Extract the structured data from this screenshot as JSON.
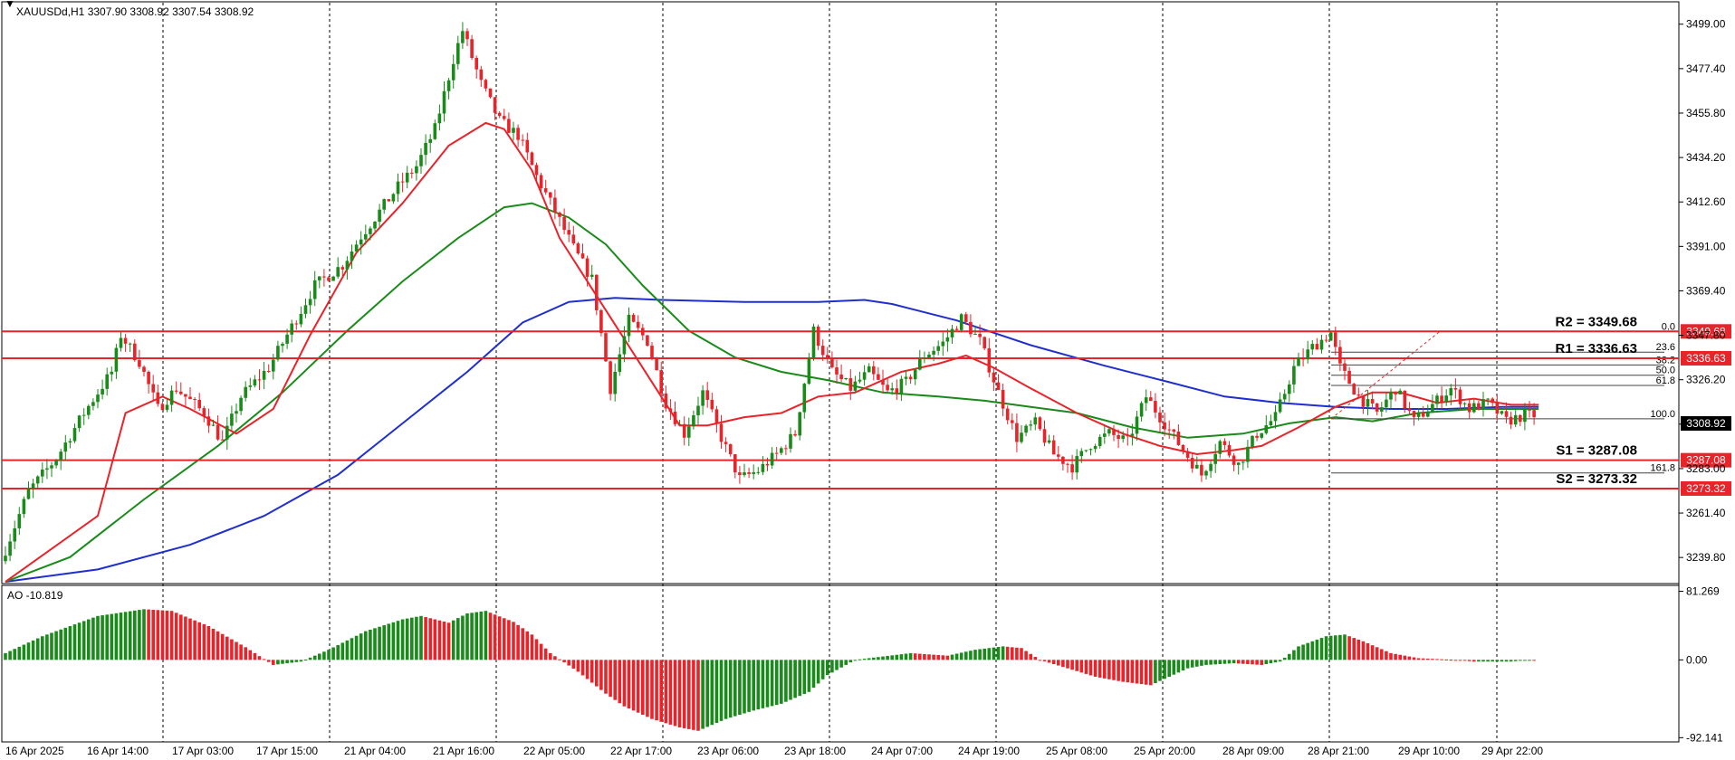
{
  "header": {
    "symbol_line": "XAUUSDd,H1  3307.90 3308.92 3307.54 3308.92"
  },
  "indicator": {
    "label": "AO -10.819"
  },
  "colors": {
    "bull": "#1a8a1a",
    "bear": "#e8232a",
    "ma_fast": "#e8232a",
    "ma_mid": "#1a8a1a",
    "ma_slow": "#1f2fcf",
    "level": "#e8232a",
    "current_bg": "#000000"
  },
  "levels": [
    {
      "name": "R2 = 3349.68",
      "value": 3349.68,
      "tag": "3349.68"
    },
    {
      "name": "R1 = 3336.63",
      "value": 3336.63,
      "tag": "3336.63"
    },
    {
      "name": "S1 = 3287.08",
      "value": 3287.08,
      "tag": "3287.08"
    },
    {
      "name": "S2 = 3273.32",
      "value": 3273.32,
      "tag": "3273.32"
    }
  ],
  "current_price": "3308.92",
  "fibonacci": {
    "levels": [
      {
        "label": "0.0",
        "value": 3349.68
      },
      {
        "label": "23.6",
        "value": 3339.6
      },
      {
        "label": "38.2",
        "value": 3333.4
      },
      {
        "label": "50.0",
        "value": 3328.4
      },
      {
        "label": "61.8",
        "value": 3323.4
      },
      {
        "label": "100.0",
        "value": 3307.2
      },
      {
        "label": "161.8",
        "value": 3280.9
      }
    ]
  },
  "chart_data": {
    "type": "candlestick",
    "price_axis": {
      "min": 3228,
      "max": 3509,
      "ticks": [
        "3499.00",
        "3477.40",
        "3455.80",
        "3434.20",
        "3412.60",
        "3391.00",
        "3369.40",
        "3347.80",
        "3326.20",
        "3304.60",
        "3283.00",
        "3261.40",
        "3239.80"
      ]
    },
    "ao_axis": {
      "min": -95,
      "max": 85,
      "ticks": [
        "81.269",
        "0.00",
        "-92.141"
      ]
    },
    "time_labels": [
      "16 Apr 2025",
      "16 Apr 14:00",
      "17 Apr 03:00",
      "17 Apr 15:00",
      "21 Apr 04:00",
      "21 Apr 16:00",
      "22 Apr 05:00",
      "22 Apr 17:00",
      "23 Apr 06:00",
      "23 Apr 18:00",
      "24 Apr 07:00",
      "24 Apr 19:00",
      "25 Apr 08:00",
      "25 Apr 20:00",
      "28 Apr 09:00",
      "28 Apr 21:00",
      "29 Apr 10:00",
      "29 Apr 22:00"
    ],
    "close_path": [
      [
        0,
        3238
      ],
      [
        6,
        3272
      ],
      [
        12,
        3288
      ],
      [
        18,
        3310
      ],
      [
        24,
        3330
      ],
      [
        26,
        3348
      ],
      [
        30,
        3335
      ],
      [
        34,
        3312
      ],
      [
        38,
        3322
      ],
      [
        44,
        3310
      ],
      [
        48,
        3296
      ],
      [
        52,
        3318
      ],
      [
        58,
        3332
      ],
      [
        62,
        3348
      ],
      [
        68,
        3372
      ],
      [
        74,
        3382
      ],
      [
        78,
        3396
      ],
      [
        82,
        3408
      ],
      [
        86,
        3420
      ],
      [
        90,
        3430
      ],
      [
        94,
        3448
      ],
      [
        98,
        3482
      ],
      [
        100,
        3496
      ],
      [
        104,
        3470
      ],
      [
        108,
        3452
      ],
      [
        112,
        3445
      ],
      [
        116,
        3425
      ],
      [
        120,
        3408
      ],
      [
        124,
        3390
      ],
      [
        128,
        3375
      ],
      [
        132,
        3322
      ],
      [
        136,
        3355
      ],
      [
        140,
        3345
      ],
      [
        144,
        3315
      ],
      [
        148,
        3300
      ],
      [
        152,
        3320
      ],
      [
        156,
        3298
      ],
      [
        160,
        3278
      ],
      [
        164,
        3282
      ],
      [
        168,
        3290
      ],
      [
        172,
        3300
      ],
      [
        176,
        3350
      ],
      [
        180,
        3330
      ],
      [
        184,
        3322
      ],
      [
        188,
        3330
      ],
      [
        192,
        3320
      ],
      [
        196,
        3325
      ],
      [
        200,
        3338
      ],
      [
        204,
        3344
      ],
      [
        208,
        3356
      ],
      [
        212,
        3345
      ],
      [
        216,
        3320
      ],
      [
        220,
        3298
      ],
      [
        224,
        3305
      ],
      [
        228,
        3290
      ],
      [
        232,
        3284
      ],
      [
        236,
        3295
      ],
      [
        240,
        3300
      ],
      [
        244,
        3296
      ],
      [
        248,
        3318
      ],
      [
        252,
        3305
      ],
      [
        256,
        3292
      ],
      [
        260,
        3280
      ],
      [
        264,
        3296
      ],
      [
        268,
        3285
      ],
      [
        272,
        3300
      ],
      [
        276,
        3308
      ],
      [
        280,
        3332
      ],
      [
        284,
        3342
      ],
      [
        288,
        3349
      ],
      [
        290,
        3332
      ],
      [
        294,
        3318
      ],
      [
        298,
        3310
      ],
      [
        302,
        3322
      ],
      [
        306,
        3306
      ],
      [
        310,
        3314
      ],
      [
        314,
        3322
      ],
      [
        318,
        3312
      ],
      [
        322,
        3315
      ],
      [
        326,
        3306
      ],
      [
        330,
        3309
      ]
    ],
    "ma_fast": [
      [
        0,
        3228
      ],
      [
        20,
        3260
      ],
      [
        26,
        3310
      ],
      [
        34,
        3318
      ],
      [
        40,
        3312
      ],
      [
        50,
        3300
      ],
      [
        58,
        3312
      ],
      [
        66,
        3348
      ],
      [
        76,
        3388
      ],
      [
        86,
        3412
      ],
      [
        96,
        3440
      ],
      [
        104,
        3451
      ],
      [
        108,
        3448
      ],
      [
        114,
        3428
      ],
      [
        120,
        3395
      ],
      [
        130,
        3360
      ],
      [
        140,
        3325
      ],
      [
        146,
        3304
      ],
      [
        152,
        3304
      ],
      [
        160,
        3308
      ],
      [
        168,
        3310
      ],
      [
        176,
        3318
      ],
      [
        184,
        3320
      ],
      [
        194,
        3330
      ],
      [
        202,
        3334
      ],
      [
        208,
        3338
      ],
      [
        214,
        3332
      ],
      [
        222,
        3322
      ],
      [
        232,
        3310
      ],
      [
        242,
        3300
      ],
      [
        250,
        3294
      ],
      [
        258,
        3290
      ],
      [
        266,
        3292
      ],
      [
        272,
        3294
      ],
      [
        280,
        3303
      ],
      [
        288,
        3313
      ],
      [
        296,
        3320
      ],
      [
        302,
        3320
      ],
      [
        310,
        3315
      ],
      [
        318,
        3317
      ],
      [
        326,
        3314
      ],
      [
        332,
        3314
      ]
    ],
    "ma_mid": [
      [
        0,
        3228
      ],
      [
        14,
        3240
      ],
      [
        30,
        3268
      ],
      [
        46,
        3294
      ],
      [
        60,
        3320
      ],
      [
        74,
        3350
      ],
      [
        86,
        3374
      ],
      [
        98,
        3395
      ],
      [
        108,
        3410
      ],
      [
        114,
        3412
      ],
      [
        122,
        3405
      ],
      [
        130,
        3392
      ],
      [
        138,
        3372
      ],
      [
        148,
        3350
      ],
      [
        158,
        3337
      ],
      [
        168,
        3330
      ],
      [
        178,
        3326
      ],
      [
        190,
        3320
      ],
      [
        202,
        3318
      ],
      [
        212,
        3316
      ],
      [
        222,
        3313
      ],
      [
        232,
        3310
      ],
      [
        244,
        3303
      ],
      [
        256,
        3298
      ],
      [
        268,
        3300
      ],
      [
        278,
        3305
      ],
      [
        288,
        3308
      ],
      [
        296,
        3306
      ],
      [
        306,
        3310
      ],
      [
        318,
        3312
      ],
      [
        326,
        3312
      ],
      [
        332,
        3312
      ]
    ],
    "ma_slow": [
      [
        0,
        3228
      ],
      [
        20,
        3234
      ],
      [
        40,
        3246
      ],
      [
        56,
        3260
      ],
      [
        72,
        3280
      ],
      [
        86,
        3305
      ],
      [
        100,
        3330
      ],
      [
        112,
        3354
      ],
      [
        122,
        3364
      ],
      [
        132,
        3366
      ],
      [
        142,
        3365
      ],
      [
        160,
        3364
      ],
      [
        176,
        3364
      ],
      [
        186,
        3365
      ],
      [
        192,
        3363
      ],
      [
        206,
        3355
      ],
      [
        222,
        3343
      ],
      [
        238,
        3333
      ],
      [
        252,
        3325
      ],
      [
        264,
        3318
      ],
      [
        276,
        3315
      ],
      [
        288,
        3313
      ],
      [
        300,
        3312
      ],
      [
        312,
        3312
      ],
      [
        324,
        3313
      ],
      [
        332,
        3313
      ]
    ],
    "ao_path": [
      [
        0,
        8
      ],
      [
        8,
        28
      ],
      [
        20,
        52
      ],
      [
        30,
        60
      ],
      [
        36,
        58
      ],
      [
        44,
        40
      ],
      [
        52,
        15
      ],
      [
        58,
        -6
      ],
      [
        64,
        -2
      ],
      [
        70,
        12
      ],
      [
        78,
        34
      ],
      [
        86,
        48
      ],
      [
        90,
        52
      ],
      [
        96,
        44
      ],
      [
        100,
        55
      ],
      [
        104,
        58
      ],
      [
        110,
        45
      ],
      [
        114,
        30
      ],
      [
        118,
        8
      ],
      [
        124,
        -14
      ],
      [
        130,
        -40
      ],
      [
        134,
        -55
      ],
      [
        140,
        -70
      ],
      [
        146,
        -80
      ],
      [
        150,
        -84
      ],
      [
        156,
        -70
      ],
      [
        162,
        -60
      ],
      [
        168,
        -52
      ],
      [
        174,
        -38
      ],
      [
        178,
        -18
      ],
      [
        184,
        0
      ],
      [
        190,
        4
      ],
      [
        196,
        8
      ],
      [
        204,
        5
      ],
      [
        210,
        12
      ],
      [
        216,
        16
      ],
      [
        220,
        14
      ],
      [
        224,
        0
      ],
      [
        230,
        -10
      ],
      [
        236,
        -20
      ],
      [
        242,
        -26
      ],
      [
        248,
        -30
      ],
      [
        252,
        -20
      ],
      [
        256,
        -10
      ],
      [
        260,
        -6
      ],
      [
        266,
        -4
      ],
      [
        272,
        -6
      ],
      [
        276,
        -2
      ],
      [
        280,
        16
      ],
      [
        286,
        28
      ],
      [
        290,
        30
      ],
      [
        294,
        22
      ],
      [
        300,
        8
      ],
      [
        306,
        2
      ],
      [
        314,
        0
      ],
      [
        318,
        -2
      ],
      [
        326,
        -2
      ],
      [
        330,
        0
      ],
      [
        334,
        -2
      ],
      [
        340,
        -6
      ],
      [
        344,
        -8
      ]
    ]
  }
}
